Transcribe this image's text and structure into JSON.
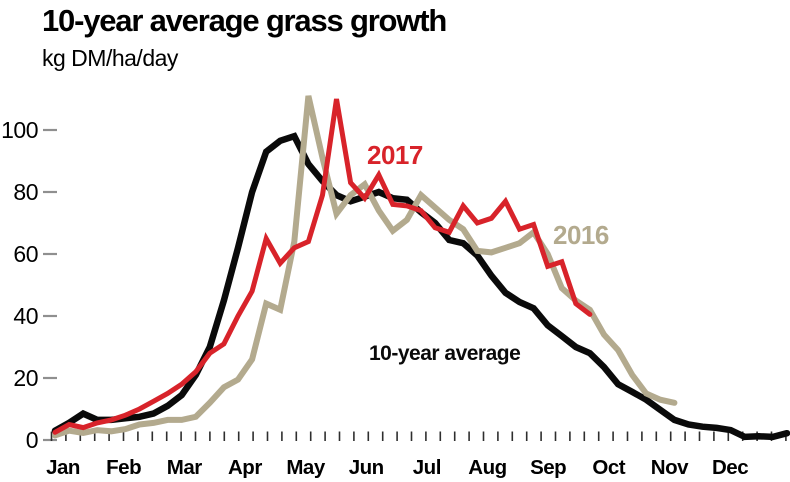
{
  "title": "10-year average grass growth",
  "subtitle": "kg DM/ha/day",
  "chart_data": {
    "type": "line",
    "title": "10-year average grass growth",
    "ylabel": "kg DM/ha/day",
    "xlabel": "",
    "x_resolution": "weekly",
    "grid": false,
    "legend_position": "inline-labels",
    "ylim": [
      0,
      115
    ],
    "yticks": [
      0,
      20,
      40,
      60,
      80,
      100
    ],
    "months": [
      "Jan",
      "Feb",
      "Mar",
      "Apr",
      "May",
      "Jun",
      "Jul",
      "Aug",
      "Sep",
      "Oct",
      "Nov",
      "Dec"
    ],
    "series": [
      {
        "name": "10-year average",
        "color": "#0a0a0a",
        "values": [
          3,
          5.5,
          8.5,
          6.5,
          6.5,
          7,
          7.5,
          8.5,
          11,
          14.5,
          21,
          30,
          45,
          62,
          80,
          93,
          96.5,
          98,
          89,
          83.5,
          79,
          77,
          78.5,
          80,
          78,
          77.5,
          73.5,
          70,
          64.5,
          63.5,
          59.5,
          53,
          47.5,
          44.5,
          42.5,
          37,
          33.5,
          30,
          28,
          23.5,
          18,
          15.5,
          13,
          9.7,
          6.5,
          5,
          4.3,
          3.9,
          3.2,
          1,
          1.2,
          1,
          2.2
        ]
      },
      {
        "name": "2017",
        "color": "#d8232a",
        "values": [
          2.5,
          5,
          4,
          5.5,
          6.5,
          8,
          10,
          12.5,
          15,
          18,
          22,
          28,
          31,
          40,
          48,
          65,
          57,
          62,
          64,
          79,
          110,
          83,
          78,
          85.5,
          76,
          75.5,
          74,
          68.5,
          67,
          75.5,
          70,
          71.5,
          77,
          68,
          69.5,
          56,
          57.5,
          44,
          40.5
        ]
      },
      {
        "name": "2016",
        "color": "#b3aa8e",
        "values": [
          1.5,
          3,
          2.3,
          3.2,
          2.8,
          3.5,
          5,
          5.5,
          6.5,
          6.5,
          7.5,
          12,
          17,
          19.5,
          26,
          44,
          42,
          64,
          111,
          91,
          73,
          79,
          82.5,
          74,
          67.5,
          71,
          79,
          75,
          71,
          68,
          61,
          60.5,
          62,
          63.5,
          67,
          60,
          49,
          45,
          42,
          34,
          29,
          21,
          15,
          13,
          12
        ]
      }
    ]
  }
}
